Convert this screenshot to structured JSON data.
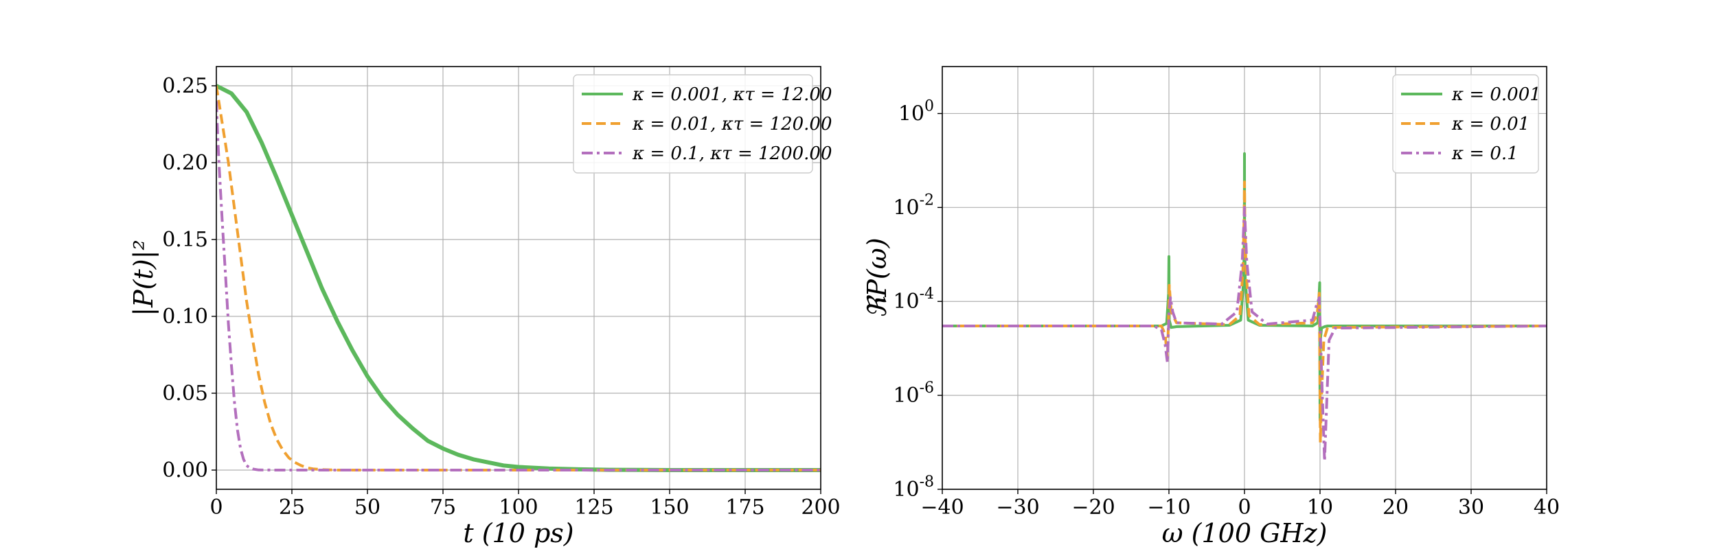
{
  "colors": {
    "green": "#5cb85c",
    "orange": "#f0a030",
    "purple": "#b36fbd",
    "grid": "#b0b0b0"
  },
  "chart_data": [
    {
      "type": "line",
      "xlabel": "t (10 ps)",
      "ylabel": "|P(t)|²",
      "xlim": [
        0,
        200
      ],
      "ylim": [
        -0.0125,
        0.2625
      ],
      "xticks": [
        0,
        25,
        50,
        75,
        100,
        125,
        150,
        175,
        200
      ],
      "xtick_labels": [
        "0",
        "25",
        "50",
        "75",
        "100",
        "125",
        "150",
        "175",
        "200"
      ],
      "yticks": [
        0,
        0.05,
        0.1,
        0.15,
        0.2,
        0.25
      ],
      "ytick_labels": [
        "0.00",
        "0.05",
        "0.10",
        "0.15",
        "0.20",
        "0.25"
      ],
      "grid": true,
      "legend_position": "top-right",
      "series": [
        {
          "name": "κ = 0.001, κτ = 12.00",
          "color": "green",
          "style": "solid",
          "x": [
            0,
            5,
            10,
            15,
            20,
            25,
            30,
            35,
            40,
            45,
            50,
            55,
            60,
            65,
            70,
            75,
            80,
            85,
            90,
            95,
            100,
            110,
            120,
            130,
            140,
            150,
            175,
            200
          ],
          "y": [
            0.25,
            0.245,
            0.233,
            0.213,
            0.19,
            0.166,
            0.142,
            0.118,
            0.097,
            0.078,
            0.061,
            0.047,
            0.036,
            0.027,
            0.019,
            0.014,
            0.01,
            0.007,
            0.005,
            0.003,
            0.002,
            0.001,
            0.0005,
            0.0002,
            0.0001,
            0.0,
            0.0,
            0.0
          ]
        },
        {
          "name": "κ = 0.01, κτ = 120.00",
          "color": "orange",
          "style": "dashed",
          "x": [
            0,
            2,
            4,
            6,
            8,
            10,
            12,
            14,
            16,
            18,
            20,
            22,
            24,
            26,
            28,
            30,
            32,
            35,
            40,
            50,
            75,
            100,
            150,
            200
          ],
          "y": [
            0.25,
            0.225,
            0.2,
            0.17,
            0.14,
            0.11,
            0.085,
            0.062,
            0.044,
            0.03,
            0.02,
            0.013,
            0.008,
            0.005,
            0.003,
            0.0015,
            0.0008,
            0.0003,
            0.0,
            0.0,
            0.0,
            0.0,
            0.0,
            0.0
          ]
        },
        {
          "name": "κ = 0.1, κτ = 1200.00",
          "color": "purple",
          "style": "dashdot",
          "x": [
            0,
            0.5,
            1,
            2,
            3,
            4,
            5,
            6,
            7,
            8,
            9,
            10,
            11,
            12,
            14,
            20,
            50,
            100,
            150,
            200
          ],
          "y": [
            0.24,
            0.215,
            0.195,
            0.16,
            0.128,
            0.095,
            0.068,
            0.044,
            0.026,
            0.014,
            0.007,
            0.003,
            0.0015,
            0.0007,
            0.0001,
            0.0,
            0.0,
            0.0,
            0.0,
            0.0
          ]
        }
      ]
    },
    {
      "type": "line",
      "xlabel": "ω (100 GHz)",
      "ylabel": "ℜP(ω)",
      "xlim": [
        -40,
        40
      ],
      "ylim_log10": [
        -8,
        1
      ],
      "yscale": "log",
      "xticks": [
        -40,
        -30,
        -20,
        -10,
        0,
        10,
        20,
        30,
        40
      ],
      "xtick_labels": [
        "−40",
        "−30",
        "−20",
        "−10",
        "0",
        "10",
        "20",
        "30",
        "40"
      ],
      "yticks_log10": [
        -8,
        -6,
        -4,
        -2,
        0
      ],
      "ytick_base": "10",
      "ytick_exponents": [
        "-8",
        "-6",
        "-4",
        "-2",
        "0"
      ],
      "grid": true,
      "legend_position": "top-right",
      "baseline": 3e-05,
      "series": [
        {
          "name": "κ = 0.001",
          "color": "green",
          "style": "solid",
          "x": [
            -40,
            -11,
            -10.3,
            -10.05,
            -10.0,
            -9.95,
            -9.7,
            -9,
            -2,
            -0.5,
            -0.1,
            -0.02,
            0.0,
            0.02,
            0.1,
            0.5,
            2,
            9,
            9.7,
            9.95,
            10.0,
            10.05,
            10.2,
            10.6,
            11,
            40
          ],
          "y": [
            3e-05,
            3e-05,
            3.4e-05,
            0.00015,
            0.0009,
            4e-05,
            2.8e-05,
            2.9e-05,
            3.1e-05,
            4e-05,
            0.0003,
            0.003,
            0.14,
            0.003,
            0.0003,
            4e-05,
            3.1e-05,
            3e-05,
            3.5e-05,
            0.00025,
            3e-07,
            1.5e-05,
            2.7e-05,
            2.9e-05,
            3e-05,
            3e-05
          ]
        },
        {
          "name": "κ = 0.01",
          "color": "orange",
          "style": "dashed",
          "x": [
            -40,
            -11,
            -10.5,
            -10.2,
            -10.05,
            -9.95,
            -9.7,
            -9,
            -2,
            -0.6,
            -0.2,
            -0.05,
            0.0,
            0.05,
            0.2,
            0.6,
            2,
            9,
            9.6,
            9.9,
            10.05,
            10.2,
            10.5,
            11,
            40
          ],
          "y": [
            3e-05,
            3e-05,
            2e-05,
            6e-06,
            5e-05,
            0.00022,
            6e-05,
            3.5e-05,
            3.2e-05,
            5e-05,
            0.0005,
            0.006,
            0.035,
            0.006,
            0.0005,
            5e-05,
            3.2e-05,
            3.5e-05,
            5e-05,
            0.00015,
            1e-07,
            1e-06,
            1.5e-05,
            2.8e-05,
            3e-05
          ]
        },
        {
          "name": "κ = 0.1",
          "color": "purple",
          "style": "dashdot",
          "x": [
            -40,
            -12,
            -11,
            -10.5,
            -10.2,
            -10.0,
            -9.8,
            -9.5,
            -9,
            -3,
            -1,
            -0.3,
            -0.1,
            0.0,
            0.1,
            0.3,
            1,
            3,
            9,
            9.5,
            9.9,
            10.3,
            10.6,
            10.8,
            11.2,
            12,
            40
          ],
          "y": [
            3e-05,
            3e-05,
            2.5e-05,
            1.2e-05,
            5e-06,
            5e-05,
            0.00012,
            6e-05,
            3.5e-05,
            3.3e-05,
            6e-05,
            0.0007,
            0.004,
            0.01,
            0.004,
            0.0007,
            6e-05,
            3.3e-05,
            4e-05,
            8e-05,
            0.00012,
            1e-06,
            4e-08,
            3e-07,
            1.5e-05,
            2.7e-05,
            3e-05
          ]
        }
      ]
    }
  ]
}
